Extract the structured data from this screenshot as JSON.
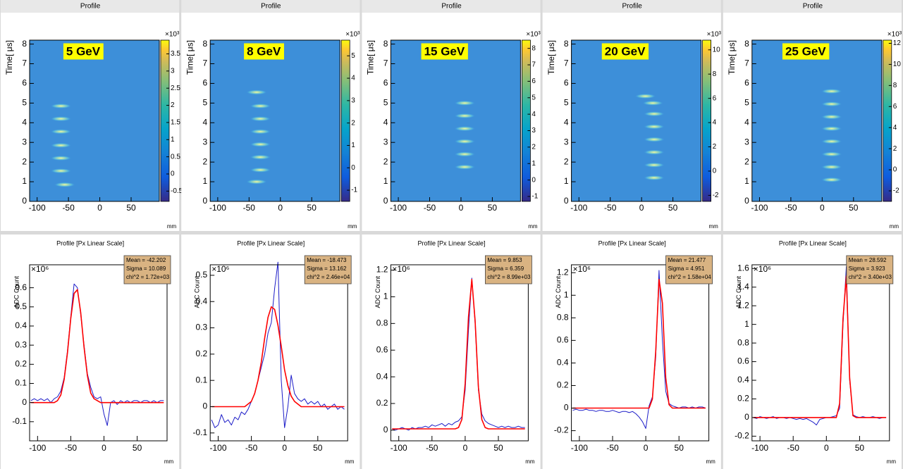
{
  "chart_data": [
    {
      "type": "heatmap",
      "title": "Profile",
      "annotation": "5 GeV",
      "ylabel": "Time[ μs]",
      "xlabel": "mm",
      "x": [
        -56,
        -62,
        -62,
        -62,
        -62,
        -62,
        -62
      ],
      "values": [
        0.85,
        1.55,
        2.2,
        2.85,
        3.55,
        4.2,
        4.85
      ],
      "xlim": [
        -112,
        95
      ],
      "xticks": [
        -100,
        -50,
        0,
        50
      ],
      "ylim": [
        0,
        8.2
      ],
      "yticks": [
        0,
        1,
        2,
        3,
        4,
        5,
        6,
        7,
        8
      ],
      "colorbar": {
        "lim": [
          -0.8,
          3.9
        ],
        "ticks": [
          -0.5,
          0,
          0.5,
          1,
          1.5,
          2,
          2.5,
          3,
          3.5
        ],
        "exponent": "×10³"
      }
    },
    {
      "type": "heatmap",
      "title": "Profile",
      "annotation": "8 GeV",
      "ylabel": "Time[ μs]",
      "xlabel": "mm",
      "x": [
        -38,
        -32,
        -32,
        -32,
        -32,
        -32,
        -32,
        -38
      ],
      "values": [
        1.0,
        1.6,
        2.25,
        2.9,
        3.55,
        4.2,
        4.85,
        5.55
      ],
      "xlim": [
        -112,
        95
      ],
      "xticks": [
        -100,
        -50,
        0,
        50
      ],
      "ylim": [
        0,
        8.2
      ],
      "yticks": [
        0,
        1,
        2,
        3,
        4,
        5,
        6,
        7,
        8
      ],
      "colorbar": {
        "lim": [
          -1.5,
          5.7
        ],
        "ticks": [
          -1,
          0,
          1,
          2,
          3,
          4,
          5
        ],
        "exponent": "×10³"
      }
    },
    {
      "type": "heatmap",
      "title": "Profile",
      "annotation": "15 GeV",
      "ylabel": "Time[ μs]",
      "xlabel": "mm",
      "x": [
        6,
        6,
        6,
        6,
        6,
        6
      ],
      "values": [
        1.75,
        2.4,
        3.05,
        3.7,
        4.35,
        5.0
      ],
      "xlim": [
        -112,
        95
      ],
      "xticks": [
        -100,
        -50,
        0,
        50
      ],
      "ylim": [
        0,
        8.2
      ],
      "yticks": [
        0,
        1,
        2,
        3,
        4,
        5,
        6,
        7,
        8
      ],
      "colorbar": {
        "lim": [
          -1.3,
          8.5
        ],
        "ticks": [
          -1,
          0,
          1,
          2,
          3,
          4,
          5,
          6,
          7,
          8
        ],
        "exponent": "×10³"
      }
    },
    {
      "type": "heatmap",
      "title": "Profile",
      "annotation": "20 GeV",
      "ylabel": "Time[ μs]",
      "xlabel": "mm",
      "x": [
        20,
        20,
        20,
        20,
        20,
        20,
        18,
        6
      ],
      "values": [
        1.2,
        1.85,
        2.5,
        3.15,
        3.8,
        4.45,
        5.0,
        5.35
      ],
      "xlim": [
        -112,
        95
      ],
      "xticks": [
        -100,
        -50,
        0,
        50
      ],
      "ylim": [
        0,
        8.2
      ],
      "yticks": [
        0,
        1,
        2,
        3,
        4,
        5,
        6,
        7,
        8
      ],
      "colorbar": {
        "lim": [
          -2.5,
          10.8
        ],
        "ticks": [
          -2,
          0,
          2,
          4,
          6,
          8,
          10
        ],
        "exponent": "×10³"
      }
    },
    {
      "type": "heatmap",
      "title": "Profile",
      "annotation": "25 GeV",
      "ylabel": "Time[ μs]",
      "xlabel": "mm",
      "x": [
        15,
        15,
        15,
        15,
        15,
        15,
        15,
        15
      ],
      "values": [
        1.1,
        1.75,
        2.4,
        3.05,
        3.7,
        4.3,
        4.95,
        5.6
      ],
      "xlim": [
        -112,
        95
      ],
      "xticks": [
        -100,
        -50,
        0,
        50
      ],
      "ylim": [
        0,
        8.2
      ],
      "yticks": [
        0,
        1,
        2,
        3,
        4,
        5,
        6,
        7,
        8
      ],
      "colorbar": {
        "lim": [
          -3,
          12.3
        ],
        "ticks": [
          -2,
          0,
          2,
          4,
          6,
          8,
          10,
          12
        ],
        "exponent": "×10³"
      }
    },
    {
      "type": "line",
      "title": "Profile [Px Linear Scale]",
      "ylabel": "ADC Count",
      "xlabel": "mm",
      "y_exponent": "×10⁶",
      "stats": [
        "Mean = -42.202",
        "Sigma = 10.089",
        "chi^2 = 1.72e+03"
      ],
      "x": [
        -110,
        -105,
        -100,
        -95,
        -90,
        -85,
        -80,
        -75,
        -70,
        -65,
        -60,
        -55,
        -50,
        -45,
        -40,
        -35,
        -30,
        -25,
        -20,
        -15,
        -10,
        -5,
        0,
        5,
        10,
        15,
        20,
        25,
        30,
        35,
        40,
        45,
        50,
        55,
        60,
        65,
        70,
        75,
        80,
        85,
        90
      ],
      "series": [
        {
          "color": "#1c1cc8",
          "values": [
            0.01,
            0.02,
            0.01,
            0.02,
            0.01,
            0.02,
            0.0,
            0.02,
            0.03,
            0.06,
            0.13,
            0.27,
            0.45,
            0.62,
            0.6,
            0.46,
            0.3,
            0.15,
            0.08,
            0.03,
            0.02,
            0.03,
            -0.06,
            -0.12,
            0.0,
            0.01,
            -0.01,
            0.01,
            0.0,
            0.01,
            0.0,
            0.01,
            0.01,
            0.0,
            0.01,
            0.01,
            0.0,
            0.01,
            0.0,
            0.01,
            0.01
          ]
        },
        {
          "color": "#ff0000",
          "values": [
            0,
            0,
            0,
            0,
            0,
            0,
            0,
            0,
            0.01,
            0.04,
            0.12,
            0.26,
            0.44,
            0.57,
            0.59,
            0.47,
            0.29,
            0.14,
            0.05,
            0.02,
            0.01,
            0,
            0,
            0,
            0,
            0,
            0,
            0,
            0,
            0,
            0,
            0,
            0,
            0,
            0,
            0,
            0,
            0,
            0,
            0,
            0
          ]
        }
      ],
      "xlim": [
        -112,
        95
      ],
      "xticks": [
        -100,
        -50,
        0,
        50
      ],
      "ylim": [
        -0.2,
        0.72
      ],
      "yticks": [
        -0.1,
        0,
        0.1,
        0.2,
        0.3,
        0.4,
        0.5,
        0.6
      ]
    },
    {
      "type": "line",
      "title": "Profile [Px Linear Scale]",
      "ylabel": "ADC Count",
      "xlabel": "mm",
      "y_exponent": "×10⁶",
      "stats": [
        "Mean = -18.473",
        "Sigma = 13.162",
        "chi^2 = 2.46e+04"
      ],
      "x": [
        -110,
        -105,
        -100,
        -95,
        -90,
        -85,
        -80,
        -75,
        -70,
        -65,
        -60,
        -55,
        -50,
        -45,
        -40,
        -35,
        -30,
        -25,
        -20,
        -15,
        -10,
        -5,
        0,
        5,
        10,
        15,
        20,
        25,
        30,
        35,
        40,
        45,
        50,
        55,
        60,
        65,
        70,
        75,
        80,
        85,
        90
      ],
      "series": [
        {
          "color": "#1c1cc8",
          "values": [
            -0.05,
            -0.08,
            -0.07,
            -0.03,
            -0.06,
            -0.05,
            -0.07,
            -0.04,
            -0.05,
            -0.02,
            -0.03,
            -0.01,
            0.02,
            0.05,
            0.1,
            0.15,
            0.2,
            0.28,
            0.32,
            0.45,
            0.55,
            0.1,
            -0.08,
            0.0,
            0.12,
            0.05,
            0.03,
            0.02,
            0.03,
            0.01,
            0.02,
            0.01,
            0.02,
            0.0,
            0.01,
            -0.01,
            0.0,
            0.01,
            -0.01,
            0.0,
            -0.01
          ]
        },
        {
          "color": "#ff0000",
          "values": [
            0,
            0,
            0,
            0,
            0,
            0,
            0,
            0,
            0,
            0,
            0,
            0.01,
            0.02,
            0.05,
            0.1,
            0.17,
            0.26,
            0.34,
            0.38,
            0.37,
            0.31,
            0.23,
            0.14,
            0.08,
            0.04,
            0.02,
            0.01,
            0,
            0,
            0,
            0,
            0,
            0,
            0,
            0,
            0,
            0,
            0,
            0,
            0,
            0
          ]
        }
      ],
      "xlim": [
        -112,
        95
      ],
      "xticks": [
        -100,
        -50,
        0,
        50
      ],
      "ylim": [
        -0.13,
        0.54
      ],
      "yticks": [
        -0.1,
        0,
        0.1,
        0.2,
        0.3,
        0.4,
        0.5
      ]
    },
    {
      "type": "line",
      "title": "Profile [Px Linear Scale]",
      "ylabel": "ADC Count",
      "xlabel": "mm",
      "y_exponent": "×10⁶",
      "stats": [
        "Mean = 9.853",
        "Sigma = 6.359",
        "chi^2 = 8.99e+03"
      ],
      "x": [
        -110,
        -105,
        -100,
        -95,
        -90,
        -85,
        -80,
        -75,
        -70,
        -65,
        -60,
        -55,
        -50,
        -45,
        -40,
        -35,
        -30,
        -25,
        -20,
        -15,
        -10,
        -5,
        0,
        5,
        10,
        15,
        20,
        25,
        30,
        35,
        40,
        45,
        50,
        55,
        60,
        65,
        70,
        75,
        80,
        85,
        90
      ],
      "series": [
        {
          "color": "#1c1cc8",
          "values": [
            0.01,
            0.0,
            0.01,
            0.02,
            0.01,
            0.0,
            0.02,
            0.01,
            0.02,
            0.02,
            0.03,
            0.02,
            0.04,
            0.03,
            0.04,
            0.05,
            0.03,
            0.05,
            0.04,
            0.06,
            0.07,
            0.1,
            0.3,
            0.75,
            1.14,
            0.8,
            0.3,
            0.12,
            0.07,
            0.05,
            0.04,
            0.03,
            0.02,
            0.03,
            0.02,
            0.03,
            0.02,
            0.02,
            0.03,
            0.02,
            0.02
          ]
        },
        {
          "color": "#ff0000",
          "values": [
            0.01,
            0.01,
            0.01,
            0.01,
            0.01,
            0.01,
            0.01,
            0.01,
            0.01,
            0.01,
            0.01,
            0.01,
            0.01,
            0.01,
            0.01,
            0.01,
            0.01,
            0.01,
            0.01,
            0.01,
            0.02,
            0.08,
            0.35,
            0.85,
            1.13,
            0.82,
            0.32,
            0.08,
            0.02,
            0.01,
            0.01,
            0.01,
            0.01,
            0.01,
            0.01,
            0.01,
            0.01,
            0.01,
            0.01,
            0.01,
            0.01
          ]
        }
      ],
      "xlim": [
        -112,
        95
      ],
      "xticks": [
        -100,
        -50,
        0,
        50
      ],
      "ylim": [
        -0.08,
        1.24
      ],
      "yticks": [
        0,
        0.2,
        0.4,
        0.6,
        0.8,
        1,
        1.2
      ]
    },
    {
      "type": "line",
      "title": "Profile [Px Linear Scale]",
      "ylabel": "ADC Count",
      "xlabel": "mm",
      "y_exponent": "×10⁶",
      "stats": [
        "Mean = 21.477",
        "Sigma = 4.951",
        "chi^2 = 1.58e+04"
      ],
      "x": [
        -110,
        -105,
        -100,
        -95,
        -90,
        -85,
        -80,
        -75,
        -70,
        -65,
        -60,
        -55,
        -50,
        -45,
        -40,
        -35,
        -30,
        -25,
        -20,
        -15,
        -10,
        -5,
        0,
        5,
        10,
        15,
        20,
        25,
        30,
        35,
        40,
        45,
        50,
        55,
        60,
        65,
        70,
        75,
        80,
        85,
        90
      ],
      "series": [
        {
          "color": "#1c1cc8",
          "values": [
            -0.02,
            -0.01,
            -0.02,
            -0.02,
            -0.01,
            -0.02,
            -0.02,
            -0.03,
            -0.02,
            -0.02,
            -0.03,
            -0.03,
            -0.02,
            -0.03,
            -0.04,
            -0.03,
            -0.03,
            -0.04,
            -0.03,
            -0.05,
            -0.08,
            -0.12,
            -0.18,
            0.02,
            0.1,
            0.45,
            1.22,
            0.6,
            0.15,
            0.04,
            0.02,
            0.01,
            0.0,
            0.01,
            0.01,
            0.0,
            0.01,
            0.0,
            0.01,
            0.01,
            0.0
          ]
        },
        {
          "color": "#ff0000",
          "values": [
            0,
            0,
            0,
            0,
            0,
            0,
            0,
            0,
            0,
            0,
            0,
            0,
            0,
            0,
            0,
            0,
            0,
            0,
            0,
            0,
            0,
            0,
            0,
            0,
            0.08,
            0.5,
            1.14,
            0.93,
            0.27,
            0.03,
            0,
            0,
            0,
            0,
            0,
            0,
            0,
            0,
            0,
            0,
            0
          ]
        }
      ],
      "xlim": [
        -112,
        95
      ],
      "xticks": [
        -100,
        -50,
        0,
        50
      ],
      "ylim": [
        -0.29,
        1.27
      ],
      "yticks": [
        -0.2,
        0,
        0.2,
        0.4,
        0.6,
        0.8,
        1,
        1.2
      ]
    },
    {
      "type": "line",
      "title": "Profile [Px Linear Scale]",
      "ylabel": "ADC Count",
      "xlabel": "mm",
      "y_exponent": "×10⁶",
      "stats": [
        "Mean = 28.592",
        "Sigma = 3.923",
        "chi^2 = 3.40e+03"
      ],
      "x": [
        -110,
        -105,
        -100,
        -95,
        -90,
        -85,
        -80,
        -75,
        -70,
        -65,
        -60,
        -55,
        -50,
        -45,
        -40,
        -35,
        -30,
        -25,
        -20,
        -15,
        -10,
        -5,
        0,
        5,
        10,
        15,
        20,
        25,
        30,
        35,
        40,
        45,
        50,
        55,
        60,
        65,
        70,
        75,
        80,
        85,
        90
      ],
      "series": [
        {
          "color": "#1c1cc8",
          "values": [
            0.0,
            -0.01,
            0.01,
            0.0,
            -0.01,
            0.0,
            0.01,
            -0.01,
            0.0,
            0.0,
            -0.01,
            0.0,
            -0.01,
            -0.02,
            -0.01,
            -0.02,
            -0.01,
            -0.03,
            -0.05,
            -0.08,
            -0.02,
            -0.01,
            0.0,
            0.0,
            0.01,
            0.02,
            0.1,
            1.0,
            1.62,
            0.4,
            0.03,
            0.01,
            0.0,
            0.01,
            0.0,
            0.0,
            0.01,
            0.0,
            -0.01,
            0.0,
            0.0
          ]
        },
        {
          "color": "#ff0000",
          "values": [
            0,
            0,
            0,
            0,
            0,
            0,
            0,
            0,
            0,
            0,
            0,
            0,
            0,
            0,
            0,
            0,
            0,
            0,
            0,
            0,
            0,
            0,
            0,
            0,
            0,
            0,
            0.15,
            1.06,
            1.52,
            0.43,
            0.02,
            0,
            0,
            0,
            0,
            0,
            0,
            0,
            0,
            0,
            0
          ]
        }
      ],
      "xlim": [
        -112,
        95
      ],
      "xticks": [
        -100,
        -50,
        0,
        50
      ],
      "ylim": [
        -0.25,
        1.64
      ],
      "yticks": [
        -0.2,
        0,
        0.2,
        0.4,
        0.6,
        0.8,
        1,
        1.2,
        1.4,
        1.6
      ]
    }
  ]
}
